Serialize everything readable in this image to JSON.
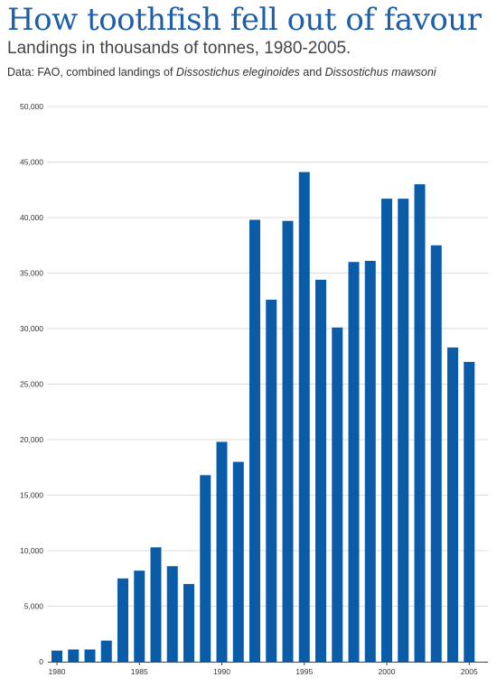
{
  "chart_data": {
    "type": "bar",
    "title": "How toothfish fell out of favour",
    "subtitle": "Landings in thousands of tonnes, 1980-2005.",
    "source": {
      "prefix": "Data: FAO, combined landings of ",
      "species1": "Dissostichus eleginoides",
      "middle": " and ",
      "species2": "Dissostichus mawsoni"
    },
    "xlabel": "",
    "ylabel": "",
    "categories": [
      1980,
      1981,
      1982,
      1983,
      1984,
      1985,
      1986,
      1987,
      1988,
      1989,
      1990,
      1991,
      1992,
      1993,
      1994,
      1995,
      1996,
      1997,
      1998,
      1999,
      2000,
      2001,
      2002,
      2003,
      2004,
      2005
    ],
    "values": [
      1000,
      1100,
      1100,
      1900,
      7500,
      8200,
      10300,
      8600,
      7000,
      16800,
      19800,
      18000,
      39800,
      32600,
      39700,
      44100,
      34400,
      30100,
      36000,
      36100,
      41700,
      41700,
      43000,
      37500,
      28300,
      27000
    ],
    "x_tick_labels": [
      "1980",
      "1985",
      "1990",
      "1995",
      "2000",
      "2005"
    ],
    "x_tick_values": [
      1980,
      1985,
      1990,
      1995,
      2000,
      2005
    ],
    "y_tick_values": [
      0,
      5000,
      10000,
      15000,
      20000,
      25000,
      30000,
      35000,
      40000,
      45000,
      50000
    ],
    "y_tick_labels": [
      "0",
      "5,000",
      "10,000",
      "15,000",
      "20,000",
      "25,000",
      "30,000",
      "35,000",
      "40,000",
      "45,000",
      "50,000"
    ],
    "ylim": [
      0,
      50000
    ],
    "grid": "horizontal",
    "legend": "none",
    "colors": {
      "bar": "#0a5ca8",
      "title": "#1f5ea8",
      "grid": "#dcdcdc",
      "axis": "#444444"
    }
  }
}
